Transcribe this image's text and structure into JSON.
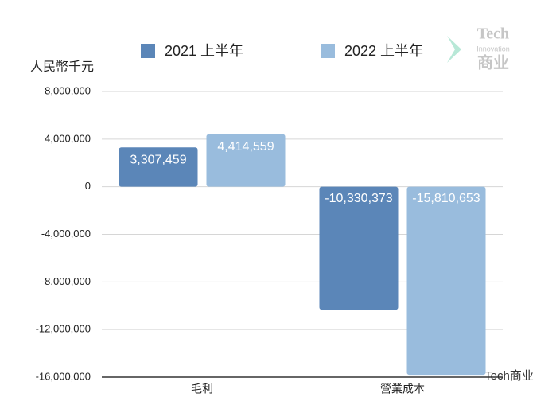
{
  "chart_data": {
    "type": "bar",
    "y_axis_label": "人民幣千元",
    "categories": [
      "毛利",
      "營業成本"
    ],
    "series": [
      {
        "name": "2021 上半年",
        "color": "#5b86b8",
        "values": [
          3307459,
          -10330373
        ],
        "value_labels": [
          "3,307,459",
          "-10,330,373"
        ]
      },
      {
        "name": "2022 上半年",
        "color": "#99bcdd",
        "values": [
          4414559,
          -15810653
        ],
        "value_labels": [
          "4,414,559",
          "-15,810,653"
        ]
      }
    ],
    "ylim": [
      -16000000,
      8000000
    ],
    "yticks": [
      {
        "value": 8000000,
        "label": "8,000,000"
      },
      {
        "value": 4000000,
        "label": "4,000,000"
      },
      0,
      {
        "value": -4000000,
        "label": "-4,000,000"
      },
      {
        "value": -8000000,
        "label": "-8,000,000"
      },
      {
        "value": -12000000,
        "label": "-12,000,000"
      },
      {
        "value": -16000000,
        "label": "-16,000,000"
      }
    ],
    "grid": true,
    "legend": "top",
    "watermark": {
      "logo": [
        "Tech",
        "Innovation",
        "商业"
      ],
      "footer": "Tech商业"
    }
  }
}
